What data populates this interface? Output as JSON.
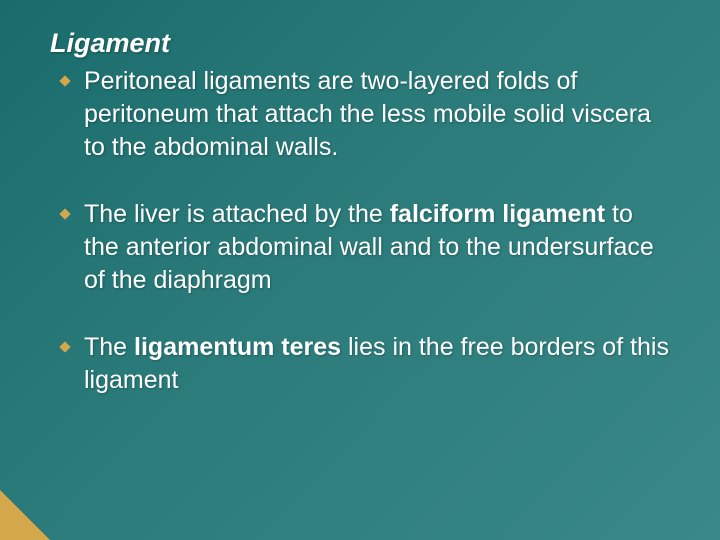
{
  "slide": {
    "title": "Ligament",
    "bullets": [
      {
        "segments": [
          {
            "text": "Peritoneal ligaments are two-layered folds of peritoneum that attach the less mobile solid viscera to the abdominal walls.",
            "bold": false
          }
        ]
      },
      {
        "segments": [
          {
            "text": "The liver is attached by the ",
            "bold": false
          },
          {
            "text": "falciform ligament",
            "bold": true
          },
          {
            "text": " to the anterior abdominal wall and to the undersurface of the diaphragm",
            "bold": false
          }
        ]
      },
      {
        "segments": [
          {
            "text": "The ",
            "bold": false
          },
          {
            "text": "ligamentum teres",
            "bold": true
          },
          {
            "text": " lies in the free borders of this ligament",
            "bold": false
          }
        ]
      }
    ],
    "colors": {
      "background_start": "#1a6b6b",
      "background_end": "#3a8888",
      "text": "#ffffff",
      "bullet_fill": "#d4a84a",
      "corner_accent": "#d4a84a"
    },
    "typography": {
      "title_fontsize": 27,
      "title_style": "italic bold",
      "body_fontsize": 25,
      "font_family": "Verdana"
    }
  }
}
